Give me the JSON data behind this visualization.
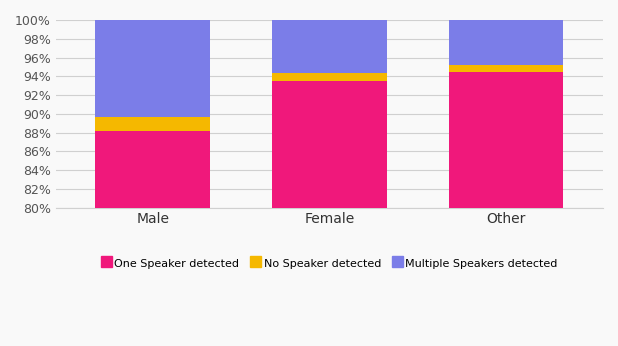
{
  "categories": [
    "Male",
    "Female",
    "Other"
  ],
  "one_speaker": [
    88.2,
    93.5,
    94.5
  ],
  "no_speaker": [
    1.5,
    0.8,
    0.7
  ],
  "multiple_speakers": [
    10.3,
    5.7,
    4.8
  ],
  "colors": {
    "one_speaker": "#F0187B",
    "no_speaker": "#F5B800",
    "multiple_speakers": "#7B7DE8"
  },
  "legend_labels": [
    "One Speaker detected",
    "No Speaker detected",
    "Multiple Speakers detected"
  ],
  "ylim_min": 80,
  "ylim_max": 100,
  "yticks": [
    80,
    82,
    84,
    86,
    88,
    90,
    92,
    94,
    96,
    98,
    100
  ],
  "background_color": "#f9f9f9",
  "grid_color": "#d0d0d0",
  "bar_width": 0.65,
  "legend_fontsize": 8.0,
  "tick_fontsize": 9,
  "xlabel_fontsize": 10
}
